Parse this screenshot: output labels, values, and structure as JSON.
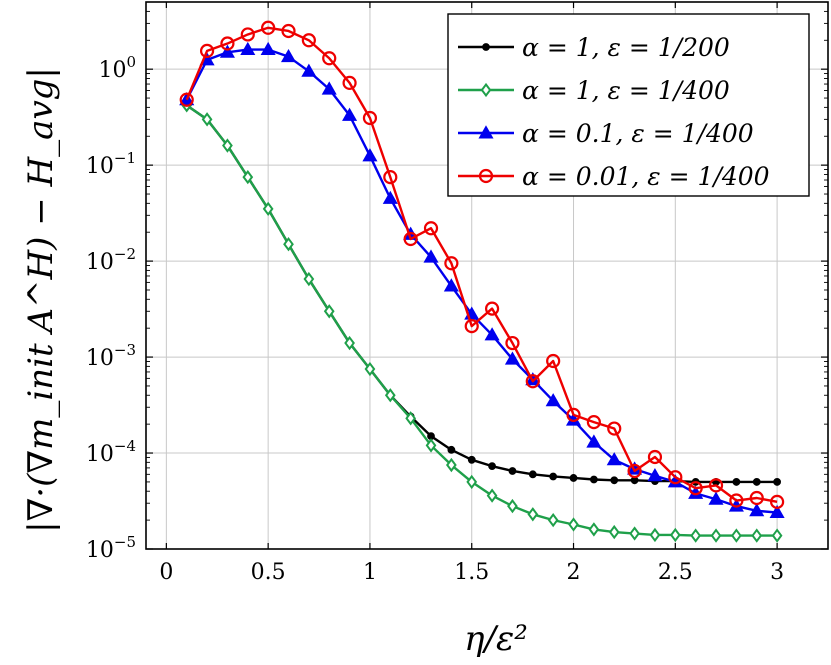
{
  "chart_data": {
    "type": "line",
    "xlabel": "η/ε²",
    "ylabel": "|∇·(∇m_init A^H) − H_avg|",
    "xlim": [
      -0.1,
      3.25
    ],
    "ylim_log10": [
      -5,
      0.7
    ],
    "yscale": "log",
    "grid": true,
    "legend_position": "top-right",
    "x_ticks": [
      "0",
      "0.5",
      "1",
      "1.5",
      "2",
      "2.5",
      "3"
    ],
    "y_ticks": [
      {
        "base": "10",
        "exp": "0"
      },
      {
        "base": "10",
        "exp": "−1"
      },
      {
        "base": "10",
        "exp": "−2"
      },
      {
        "base": "10",
        "exp": "−3"
      },
      {
        "base": "10",
        "exp": "−4"
      },
      {
        "base": "10",
        "exp": "−5"
      }
    ],
    "series": [
      {
        "name": "α = 1, ε = 1/200",
        "color": "#000000",
        "marker": "dot",
        "x": [
          0.1,
          0.2,
          0.3,
          0.4,
          0.5,
          0.6,
          0.7,
          0.8,
          0.9,
          1.0,
          1.1,
          1.2,
          1.3,
          1.4,
          1.5,
          1.6,
          1.7,
          1.8,
          1.9,
          2.0,
          2.1,
          2.2,
          2.3,
          2.4,
          2.5,
          2.6,
          2.7,
          2.8,
          2.9,
          3.0
        ],
        "y": [
          0.42,
          0.3,
          0.16,
          0.075,
          0.035,
          0.015,
          0.0065,
          0.003,
          0.0014,
          0.00075,
          0.0004,
          0.00024,
          0.00015,
          0.000108,
          8.5e-05,
          7.3e-05,
          6.5e-05,
          6e-05,
          5.7e-05,
          5.5e-05,
          5.3e-05,
          5.2e-05,
          5.2e-05,
          5.1e-05,
          5.1e-05,
          5e-05,
          5e-05,
          5e-05,
          5e-05,
          5e-05
        ]
      },
      {
        "name": "α = 1, ε = 1/400",
        "color": "#1fa04a",
        "marker": "diamond",
        "x": [
          0.1,
          0.2,
          0.3,
          0.4,
          0.5,
          0.6,
          0.7,
          0.8,
          0.9,
          1.0,
          1.1,
          1.2,
          1.3,
          1.4,
          1.5,
          1.6,
          1.7,
          1.8,
          1.9,
          2.0,
          2.1,
          2.2,
          2.3,
          2.4,
          2.5,
          2.6,
          2.7,
          2.8,
          2.9,
          3.0
        ],
        "y": [
          0.42,
          0.3,
          0.16,
          0.075,
          0.035,
          0.015,
          0.0065,
          0.003,
          0.0014,
          0.00075,
          0.0004,
          0.00023,
          0.00012,
          7.5e-05,
          5e-05,
          3.6e-05,
          2.8e-05,
          2.3e-05,
          2e-05,
          1.8e-05,
          1.6e-05,
          1.5e-05,
          1.45e-05,
          1.4e-05,
          1.4e-05,
          1.38e-05,
          1.38e-05,
          1.38e-05,
          1.38e-05,
          1.38e-05
        ]
      },
      {
        "name": "α = 0.1, ε = 1/400",
        "color": "#0000ee",
        "marker": "triangle",
        "x": [
          0.1,
          0.2,
          0.3,
          0.4,
          0.5,
          0.6,
          0.7,
          0.8,
          0.9,
          1.0,
          1.1,
          1.2,
          1.3,
          1.4,
          1.5,
          1.6,
          1.7,
          1.8,
          1.9,
          2.0,
          2.1,
          2.2,
          2.3,
          2.4,
          2.5,
          2.6,
          2.7,
          2.8,
          2.9,
          3.0
        ],
        "y": [
          0.48,
          1.25,
          1.5,
          1.6,
          1.6,
          1.35,
          0.95,
          0.62,
          0.33,
          0.125,
          0.045,
          0.019,
          0.011,
          0.0055,
          0.0028,
          0.0017,
          0.00095,
          0.00058,
          0.00035,
          0.00022,
          0.00013,
          8.5e-05,
          6.8e-05,
          5.8e-05,
          5e-05,
          3.8e-05,
          3.3e-05,
          2.8e-05,
          2.5e-05,
          2.4e-05
        ]
      },
      {
        "name": "α = 0.01, ε = 1/400",
        "color": "#ee0000",
        "marker": "circle",
        "x": [
          0.1,
          0.2,
          0.3,
          0.4,
          0.5,
          0.6,
          0.7,
          0.8,
          0.9,
          1.0,
          1.1,
          1.2,
          1.3,
          1.4,
          1.5,
          1.6,
          1.7,
          1.8,
          1.9,
          2.0,
          2.1,
          2.2,
          2.3,
          2.4,
          2.5,
          2.6,
          2.7,
          2.8,
          2.9,
          3.0
        ],
        "y": [
          0.48,
          1.55,
          1.85,
          2.3,
          2.7,
          2.5,
          2.0,
          1.3,
          0.72,
          0.31,
          0.075,
          0.017,
          0.022,
          0.0095,
          0.0021,
          0.0032,
          0.0014,
          0.00056,
          0.00091,
          0.00025,
          0.00021,
          0.00018,
          6.5e-05,
          9.1e-05,
          5.6e-05,
          4.3e-05,
          4.6e-05,
          3.2e-05,
          3.4e-05,
          3.1e-05
        ]
      }
    ]
  }
}
